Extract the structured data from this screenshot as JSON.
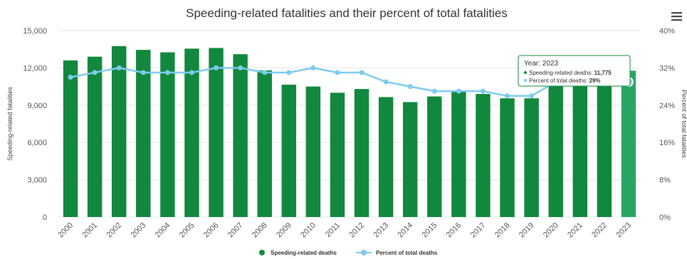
{
  "colors": {
    "bar": "#11883d",
    "bar_highlight": "#2aa565",
    "line": "#7dcbee",
    "grid": "#e6e6e6",
    "tooltip_border": "#11883d"
  },
  "menu": {
    "icon": "hamburger-menu-icon"
  },
  "tooltip": {
    "title": "Year: 2023",
    "line1_label": "Speeding-related deaths: ",
    "line1_value": "11,775",
    "line2_label": "Percent of total deaths: ",
    "line2_value": "29%"
  },
  "chart_data": {
    "type": "bar",
    "title": "Speeding-related fatalities and their percent of total fatalities",
    "ylabel": "Speeding-related fatalities",
    "y2label": "Percent of total fatalities",
    "categories": [
      "2000",
      "2001",
      "2002",
      "2003",
      "2004",
      "2005",
      "2006",
      "2007",
      "2008",
      "2009",
      "2010",
      "2011",
      "2012",
      "2013",
      "2014",
      "2015",
      "2016",
      "2017",
      "2018",
      "2019",
      "2020",
      "2021",
      "2022",
      "2023"
    ],
    "series": [
      {
        "name": "Speeding-related deaths",
        "type": "bar",
        "axis": "left",
        "values": [
          12600,
          12900,
          13750,
          13450,
          13250,
          13550,
          13600,
          13100,
          11800,
          10650,
          10500,
          10000,
          10300,
          9650,
          9250,
          9700,
          10150,
          9900,
          9550,
          9550,
          11300,
          12300,
          12200,
          11775
        ]
      },
      {
        "name": "Percent of total deaths",
        "type": "line",
        "axis": "right",
        "values": [
          30,
          31,
          32,
          31,
          31,
          31,
          32,
          32,
          31,
          31,
          32,
          31,
          31,
          29,
          28,
          27,
          27,
          27,
          26,
          26,
          29,
          29,
          29,
          29
        ]
      }
    ],
    "ylim": [
      0,
      15000
    ],
    "y2lim": [
      0,
      40
    ],
    "yticks": [
      "0",
      "3,000",
      "6,000",
      "9,000",
      "12,000",
      "15,000"
    ],
    "y2ticks": [
      "0%",
      "8%",
      "16%",
      "24%",
      "32%",
      "40%"
    ],
    "grid": true,
    "legend_position": "bottom-center",
    "highlight_category": "2023"
  }
}
